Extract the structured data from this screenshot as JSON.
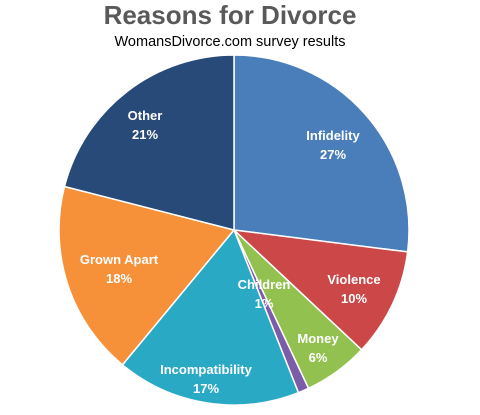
{
  "chart_data": {
    "type": "pie",
    "title": "Reasons for Divorce",
    "subtitle": "WomansDivorce.com  survey results",
    "slices": [
      {
        "label": "Infidelity",
        "value": 27,
        "value_label": "27%",
        "color": "#4a7ebb"
      },
      {
        "label": "Violence",
        "value": 10,
        "value_label": "10%",
        "color": "#cc4848"
      },
      {
        "label": "Money",
        "value": 6,
        "value_label": "6%",
        "color": "#93c150"
      },
      {
        "label": "Children",
        "value": 1,
        "value_label": "1%",
        "color": "#7b5ca8"
      },
      {
        "label": "Incompatibility",
        "value": 17,
        "value_label": "17%",
        "color": "#2aa9c4"
      },
      {
        "label": "Grown Apart",
        "value": 18,
        "value_label": "18%",
        "color": "#f6913a"
      },
      {
        "label": "Other",
        "value": 21,
        "value_label": "21%",
        "color": "#274a78"
      }
    ]
  }
}
